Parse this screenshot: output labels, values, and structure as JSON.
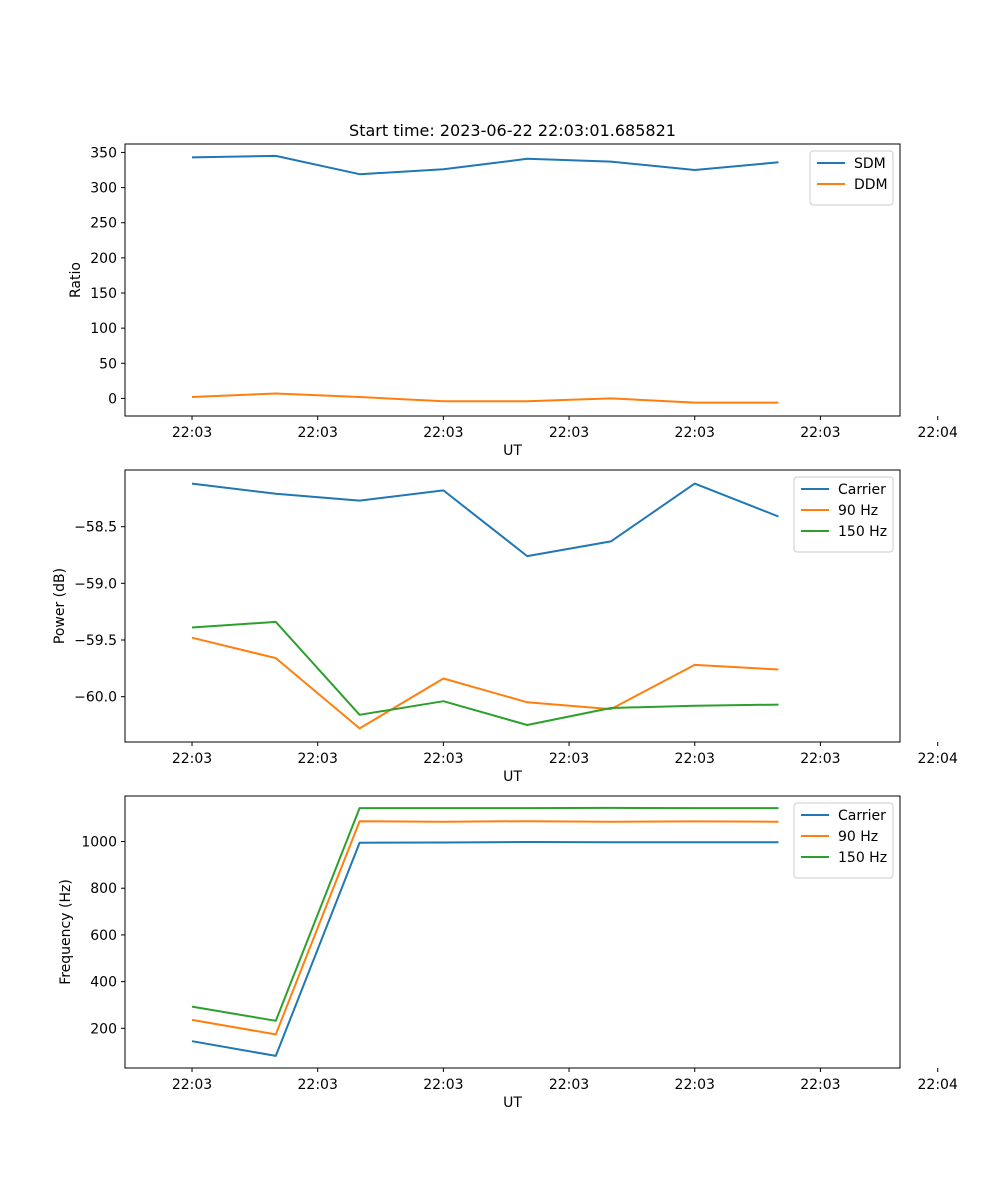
{
  "figure": {
    "title": "Start time: 2023-06-22 22:03:01.685821"
  },
  "chart_data": [
    {
      "type": "line",
      "ylabel": "Ratio",
      "xlabel": "UT",
      "x_ticks": [
        "22:03",
        "22:03",
        "22:03",
        "22:03",
        "22:03",
        "22:03",
        "22:04"
      ],
      "x": [
        1,
        2,
        3,
        4,
        5,
        6,
        7,
        8
      ],
      "xlim": [
        0.2,
        9.45
      ],
      "ylim": [
        -25,
        362
      ],
      "y_ticks": [
        0,
        50,
        100,
        150,
        200,
        250,
        300,
        350
      ],
      "legend_loc": "top-right",
      "series": [
        {
          "name": "SDM",
          "color": "#1f77b4",
          "values": [
            343,
            345,
            319,
            326,
            341,
            337,
            325,
            336
          ]
        },
        {
          "name": "DDM",
          "color": "#ff7f0e",
          "values": [
            2,
            7,
            2,
            -4,
            -4,
            0,
            -6,
            -6
          ]
        }
      ]
    },
    {
      "type": "line",
      "ylabel": "Power (dB)",
      "xlabel": "UT",
      "x_ticks": [
        "22:03",
        "22:03",
        "22:03",
        "22:03",
        "22:03",
        "22:03",
        "22:04"
      ],
      "x": [
        1,
        2,
        3,
        4,
        5,
        6,
        7,
        8
      ],
      "xlim": [
        0.2,
        9.45
      ],
      "ylim": [
        -60.4,
        -58.0
      ],
      "y_ticks": [
        -58.5,
        -59.0,
        -59.5,
        -60.0
      ],
      "y_tick_labels": [
        "−58.5",
        "−59.0",
        "−59.5",
        "−60.0"
      ],
      "legend_loc": "top-right",
      "series": [
        {
          "name": "Carrier",
          "color": "#1f77b4",
          "values": [
            -58.12,
            -58.21,
            -58.27,
            -58.18,
            -58.76,
            -58.63,
            -58.12,
            -58.41
          ]
        },
        {
          "name": "90 Hz",
          "color": "#ff7f0e",
          "values": [
            -59.48,
            -59.66,
            -60.28,
            -59.84,
            -60.05,
            -60.11,
            -59.72,
            -59.76
          ]
        },
        {
          "name": "150 Hz",
          "color": "#2ca02c",
          "values": [
            -59.39,
            -59.34,
            -60.16,
            -60.04,
            -60.25,
            -60.1,
            -60.08,
            -60.07
          ]
        }
      ]
    },
    {
      "type": "line",
      "ylabel": "Frequency (Hz)",
      "xlabel": "UT",
      "x_ticks": [
        "22:03",
        "22:03",
        "22:03",
        "22:03",
        "22:03",
        "22:03",
        "22:04"
      ],
      "x": [
        1,
        2,
        3,
        4,
        5,
        6,
        7,
        8
      ],
      "xlim": [
        0.2,
        9.45
      ],
      "ylim": [
        30,
        1195
      ],
      "y_ticks": [
        200,
        400,
        600,
        800,
        1000
      ],
      "legend_loc": "top-right",
      "series": [
        {
          "name": "Carrier",
          "color": "#1f77b4",
          "values": [
            145,
            82,
            995,
            996,
            998,
            997,
            997,
            997
          ]
        },
        {
          "name": "90 Hz",
          "color": "#ff7f0e",
          "values": [
            236,
            174,
            1087,
            1085,
            1087,
            1085,
            1086,
            1085
          ]
        },
        {
          "name": "150 Hz",
          "color": "#2ca02c",
          "values": [
            293,
            232,
            1143,
            1143,
            1143,
            1144,
            1143,
            1143
          ]
        }
      ]
    }
  ]
}
